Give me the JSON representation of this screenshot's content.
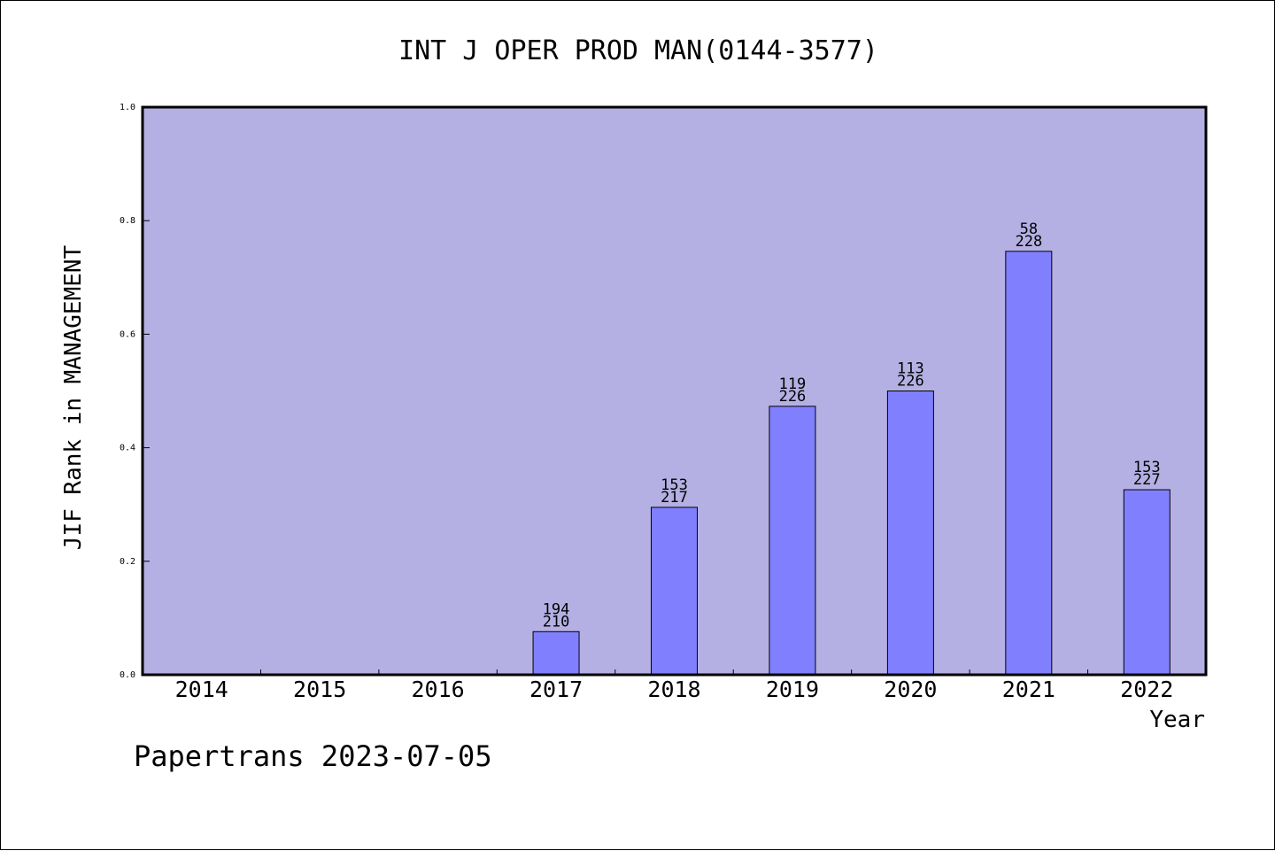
{
  "chart_data": {
    "type": "bar",
    "title": "INT J OPER PROD MAN(0144-3577)",
    "xlabel": "Year",
    "ylabel": "JIF Rank in MANAGEMENT",
    "categories": [
      "2014",
      "2015",
      "2016",
      "2017",
      "2018",
      "2019",
      "2020",
      "2021",
      "2022"
    ],
    "values": [
      null,
      null,
      null,
      0.076,
      0.295,
      0.473,
      0.5,
      0.746,
      0.326
    ],
    "rank_labels": [
      null,
      null,
      null,
      {
        "rank": "194",
        "total": "210"
      },
      {
        "rank": "153",
        "total": "217"
      },
      {
        "rank": "119",
        "total": "226"
      },
      {
        "rank": "113",
        "total": "226"
      },
      {
        "rank": "58",
        "total": "228"
      },
      {
        "rank": "153",
        "total": "227"
      }
    ],
    "ylim": [
      0,
      1.0
    ],
    "yticks": [
      "0.0",
      "0.2",
      "0.4",
      "0.6",
      "0.8",
      "1.0"
    ],
    "grid": false,
    "legend": "none",
    "footer": "Papertrans 2023-07-05",
    "colors": {
      "plot_background": "#b5b0e3",
      "bar_fill": "#8080ff",
      "bar_stroke": "#000000",
      "axis": "#000000"
    }
  }
}
